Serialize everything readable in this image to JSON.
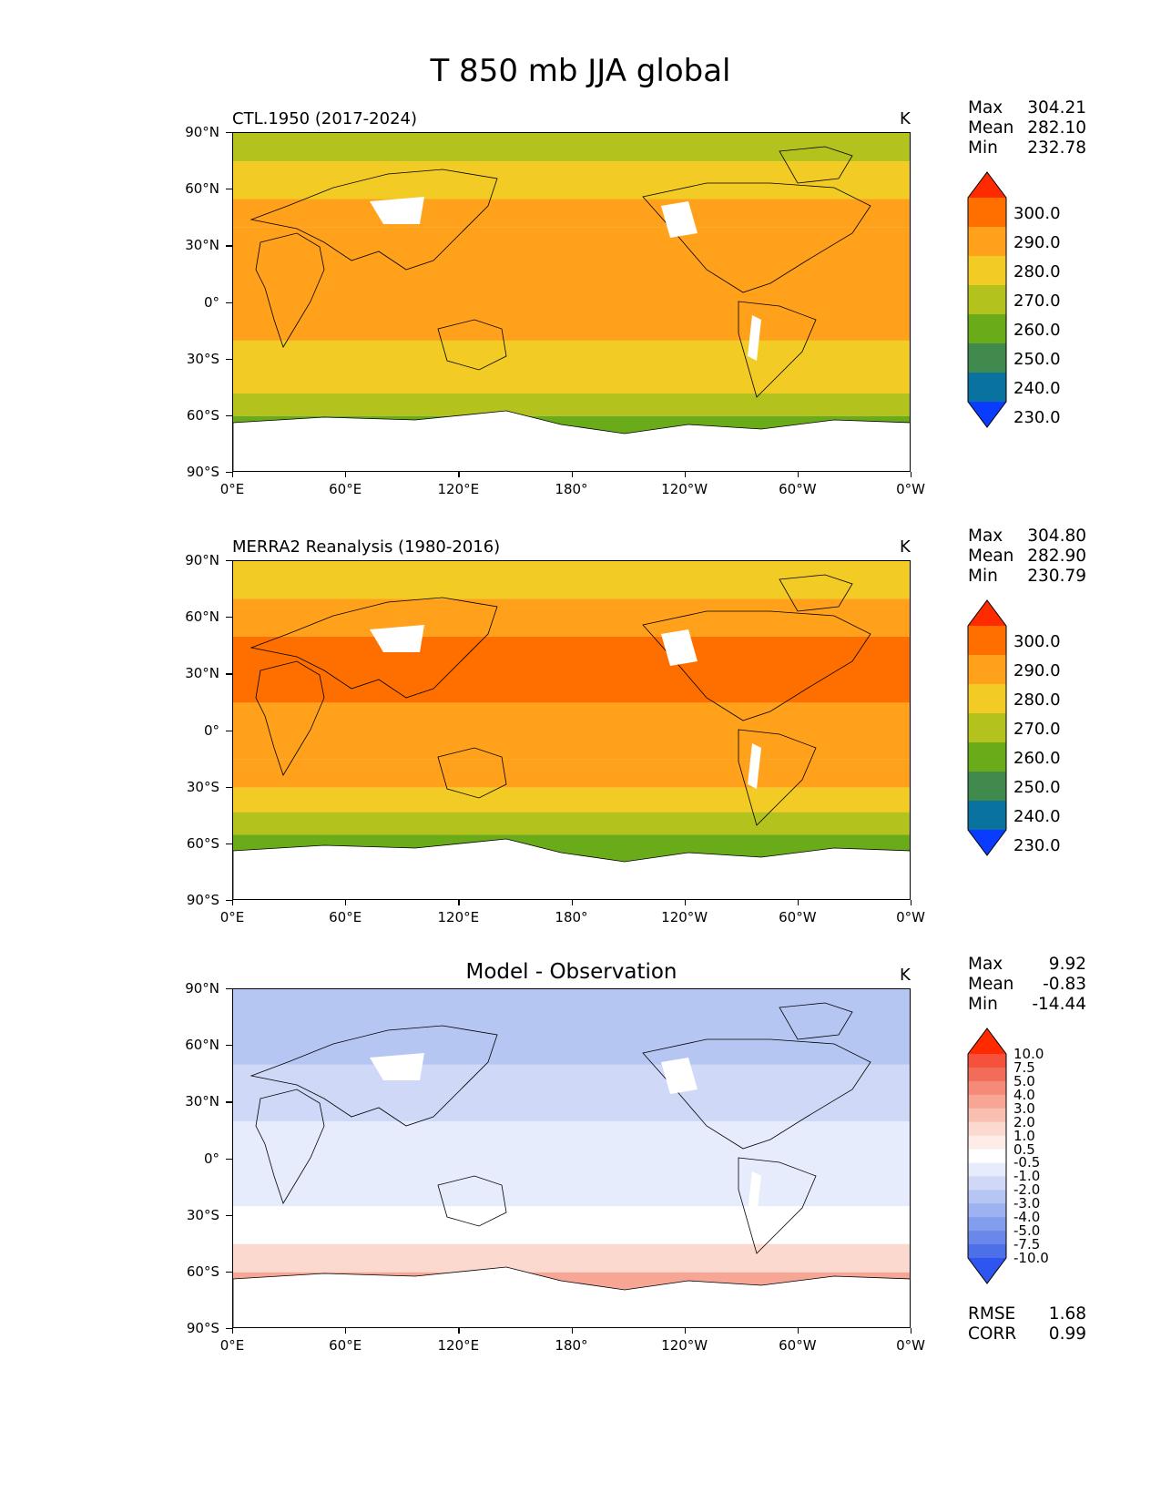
{
  "figure_title": "T 850 mb JJA global",
  "unit": "K",
  "axes": {
    "yticks": [
      "90°N",
      "60°N",
      "30°N",
      "0°",
      "30°S",
      "60°S",
      "90°S"
    ],
    "xticks": [
      "0°E",
      "60°E",
      "120°E",
      "180°",
      "120°W",
      "60°W",
      "0°W"
    ]
  },
  "panels": [
    {
      "id": "model",
      "title": "CTL.1950 (2017-2024)",
      "stats": [
        {
          "label": "Max",
          "value": "304.21"
        },
        {
          "label": "Mean",
          "value": "282.10"
        },
        {
          "label": "Min",
          "value": "232.78"
        }
      ],
      "colorbar": {
        "labels": [
          "300.0",
          "290.0",
          "280.0",
          "270.0",
          "260.0",
          "250.0",
          "240.0",
          "230.0"
        ],
        "colors": [
          "#ff2a00",
          "#ff6f00",
          "#ffa11a",
          "#f2cb24",
          "#b3c21c",
          "#6aab1a",
          "#3f8a4c",
          "#09729e",
          "#0a3cff"
        ]
      }
    },
    {
      "id": "obs",
      "title": "MERRA2 Reanalysis (1980-2016)",
      "stats": [
        {
          "label": "Max",
          "value": "304.80"
        },
        {
          "label": "Mean",
          "value": "282.90"
        },
        {
          "label": "Min",
          "value": "230.79"
        }
      ],
      "colorbar": {
        "labels": [
          "300.0",
          "290.0",
          "280.0",
          "270.0",
          "260.0",
          "250.0",
          "240.0",
          "230.0"
        ],
        "colors": [
          "#ff2a00",
          "#ff6f00",
          "#ffa11a",
          "#f2cb24",
          "#b3c21c",
          "#6aab1a",
          "#3f8a4c",
          "#09729e",
          "#0a3cff"
        ]
      }
    },
    {
      "id": "diff",
      "title": "Model - Observation",
      "stats": [
        {
          "label": "Max",
          "value": "9.92"
        },
        {
          "label": "Mean",
          "value": "-0.83"
        },
        {
          "label": "Min",
          "value": "-14.44"
        }
      ],
      "colorbar": {
        "labels": [
          "10.0",
          "7.5",
          "5.0",
          "4.0",
          "3.0",
          "2.0",
          "1.0",
          "0.5",
          "-0.5",
          "-1.0",
          "-2.0",
          "-3.0",
          "-4.0",
          "-5.0",
          "-7.5",
          "-10.0"
        ],
        "colors": [
          "#ff2a00",
          "#f5513c",
          "#f26c5a",
          "#f58a78",
          "#f7a595",
          "#f9c0b2",
          "#fbd9cf",
          "#fdece7",
          "#ffffff",
          "#e6ecfb",
          "#cfd9f7",
          "#b6c6f3",
          "#9db2f0",
          "#839ded",
          "#6a88ea",
          "#4d6fe8",
          "#2f55f0"
        ]
      },
      "metrics": [
        {
          "label": "RMSE",
          "value": "1.68"
        },
        {
          "label": "CORR",
          "value": "0.99"
        }
      ]
    }
  ],
  "chart_data": [
    {
      "type": "heatmap",
      "title": "CTL.1950 (2017-2024)",
      "variable": "T 850 mb JJA",
      "units": "K",
      "x_range": [
        0,
        360
      ],
      "y_range": [
        -90,
        90
      ],
      "levels": [
        230,
        240,
        250,
        260,
        270,
        280,
        290,
        300
      ],
      "zonal_bands": [
        {
          "lat_from": 90,
          "lat_to": 75,
          "value_k": 265
        },
        {
          "lat_from": 75,
          "lat_to": 55,
          "value_k": 275
        },
        {
          "lat_from": 55,
          "lat_to": 40,
          "value_k": 283
        },
        {
          "lat_from": 40,
          "lat_to": -20,
          "value_k": 285
        },
        {
          "lat_from": -20,
          "lat_to": -35,
          "value_k": 275
        },
        {
          "lat_from": -35,
          "lat_to": -48,
          "value_k": 272
        },
        {
          "lat_from": -48,
          "lat_to": -60,
          "value_k": 265
        },
        {
          "lat_from": -60,
          "lat_to": -72,
          "value_k": 257
        }
      ],
      "max": 304.21,
      "mean": 282.1,
      "min": 232.78
    },
    {
      "type": "heatmap",
      "title": "MERRA2 Reanalysis (1980-2016)",
      "variable": "T 850 mb JJA",
      "units": "K",
      "x_range": [
        0,
        360
      ],
      "y_range": [
        -90,
        90
      ],
      "levels": [
        230,
        240,
        250,
        260,
        270,
        280,
        290,
        300
      ],
      "zonal_bands": [
        {
          "lat_from": 90,
          "lat_to": 70,
          "value_k": 275
        },
        {
          "lat_from": 70,
          "lat_to": 50,
          "value_k": 283
        },
        {
          "lat_from": 50,
          "lat_to": 15,
          "value_k": 292
        },
        {
          "lat_from": 15,
          "lat_to": -15,
          "value_k": 285
        },
        {
          "lat_from": -15,
          "lat_to": -30,
          "value_k": 283
        },
        {
          "lat_from": -30,
          "lat_to": -43,
          "value_k": 275
        },
        {
          "lat_from": -43,
          "lat_to": -55,
          "value_k": 265
        },
        {
          "lat_from": -55,
          "lat_to": -72,
          "value_k": 257
        }
      ],
      "max": 304.8,
      "mean": 282.9,
      "min": 230.79
    },
    {
      "type": "heatmap",
      "title": "Model - Observation",
      "variable": "T 850 mb JJA difference",
      "units": "K",
      "x_range": [
        0,
        360
      ],
      "y_range": [
        -90,
        90
      ],
      "levels": [
        -10.0,
        -7.5,
        -5.0,
        -4.0,
        -3.0,
        -2.0,
        -1.0,
        -0.5,
        0.5,
        1.0,
        2.0,
        3.0,
        4.0,
        5.0,
        7.5,
        10.0
      ],
      "zonal_bands": [
        {
          "lat_from": 90,
          "lat_to": 50,
          "value_k": -2.5
        },
        {
          "lat_from": 50,
          "lat_to": 20,
          "value_k": -1.5
        },
        {
          "lat_from": 20,
          "lat_to": -25,
          "value_k": -0.8
        },
        {
          "lat_from": -25,
          "lat_to": -45,
          "value_k": 0.0
        },
        {
          "lat_from": -45,
          "lat_to": -60,
          "value_k": 1.5
        },
        {
          "lat_from": -60,
          "lat_to": -72,
          "value_k": 3.0
        }
      ],
      "max": 9.92,
      "mean": -0.83,
      "min": -14.44,
      "rmse": 1.68,
      "corr": 0.99
    }
  ]
}
